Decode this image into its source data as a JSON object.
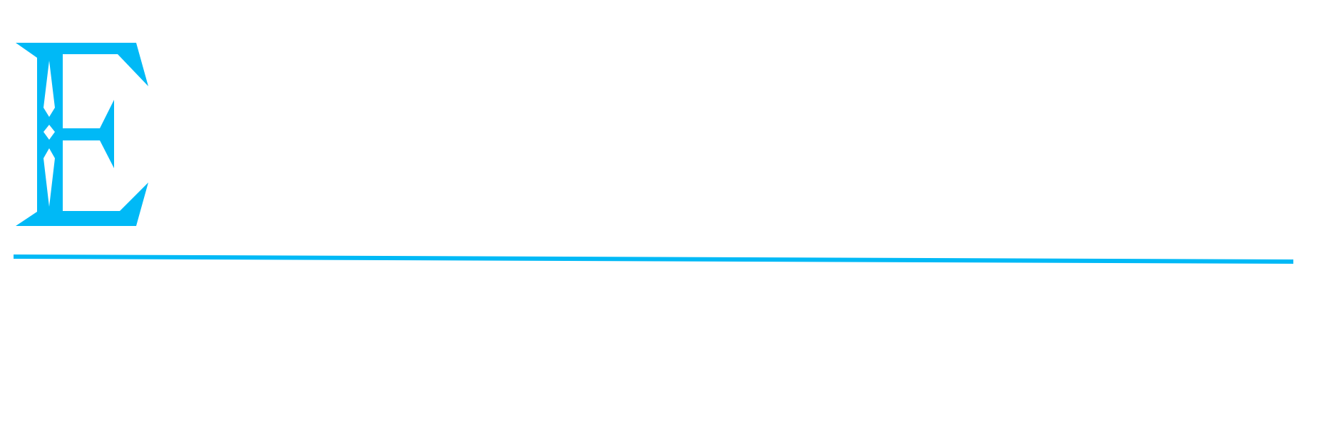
{
  "logo": {
    "letter": "E",
    "icon": "ornamental-letter-e-logo"
  },
  "colors": {
    "accent": "#00B9F6",
    "background": "#FFFFFF"
  }
}
